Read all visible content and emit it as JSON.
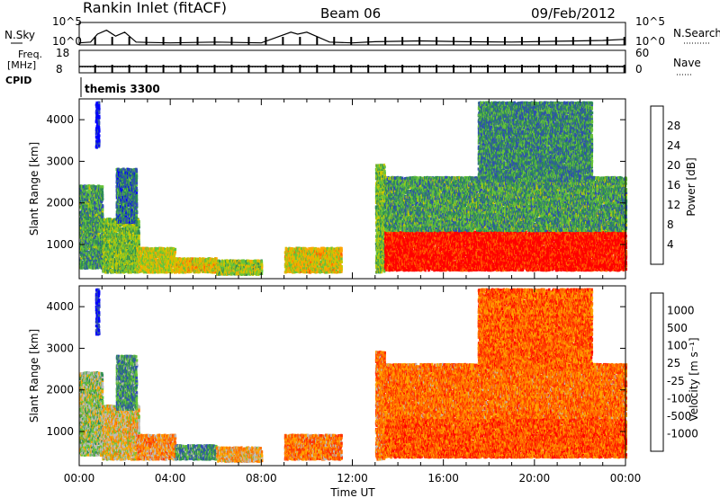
{
  "header": {
    "radar": "Rankin Inlet (fitACF)",
    "beam": "Beam 06",
    "date": "09/Feb/2012"
  },
  "strip_labels": {
    "nsky": "N.Sky",
    "freq_line1": "Freq.",
    "freq_line2": "[MHz]",
    "cpid": "CPID",
    "nsearch": "N.Search",
    "nave": "Nave",
    "cpid_value": "themis 3300"
  },
  "chart_data": [
    {
      "type": "line",
      "title": "N.Sky / N.Search",
      "y_left_ticks": [
        "10^5",
        "10^0"
      ],
      "y_right_ticks": [
        "10^5",
        "10^0"
      ],
      "series": [
        {
          "name": "N.Sky",
          "x_hours": [
            0,
            0.5,
            0.8,
            1.2,
            1.6,
            2.0,
            2.5,
            3.0,
            4.0,
            6.0,
            8.0,
            9.3,
            9.6,
            10.0,
            11.0,
            12.0,
            13.0,
            15.0,
            17.0,
            19.0,
            21.0,
            23.0,
            24.0
          ],
          "values_log10": [
            0.3,
            0.5,
            2.5,
            3.5,
            2.0,
            3.0,
            0.5,
            0.4,
            0.3,
            0.5,
            0.3,
            3.0,
            2.5,
            3.0,
            0.5,
            0.3,
            0.6,
            0.8,
            0.6,
            0.5,
            0.7,
            0.9,
            1.2
          ]
        }
      ]
    },
    {
      "type": "line",
      "title": "Freq. / Nave",
      "y_left_ticks": [
        "18",
        "8"
      ],
      "y_right_ticks": [
        "60",
        "0"
      ],
      "series": [
        {
          "name": "Freq.",
          "x_hours": [
            0,
            24
          ],
          "values": [
            10.8,
            10.8
          ]
        },
        {
          "name": "Nave",
          "x_hours": [
            0,
            24
          ],
          "values": [
            16,
            16
          ]
        }
      ]
    },
    {
      "type": "heatmap",
      "panel": "power",
      "xlabel": "",
      "ylabel": "Slant Range [km]",
      "ylim": [
        180,
        4500
      ],
      "xlim": [
        0,
        24
      ],
      "y_ticks": [
        "1000",
        "2000",
        "3000",
        "4000"
      ],
      "colorbar_label": "Power [dB]",
      "colorbar_ticks": [
        "4",
        "8",
        "12",
        "16",
        "20",
        "24",
        "28"
      ],
      "colorbar_colors": [
        "#0000ff",
        "#2f4fb0",
        "#2e8b57",
        "#66c33a",
        "#c8c800",
        "#ffa500",
        "#ff6000",
        "#ff0000"
      ],
      "blobs": [
        {
          "t0": 0.0,
          "t1": 1.0,
          "r0": 400,
          "r1": 2400,
          "level": 0.35
        },
        {
          "t0": 0.7,
          "t1": 0.85,
          "r0": 3300,
          "r1": 4400,
          "level": 0.05
        },
        {
          "t0": 1.0,
          "t1": 2.6,
          "r0": 300,
          "r1": 1600,
          "level": 0.45
        },
        {
          "t0": 1.6,
          "t1": 2.5,
          "r0": 1500,
          "r1": 2800,
          "level": 0.25
        },
        {
          "t0": 2.5,
          "t1": 4.2,
          "r0": 300,
          "r1": 900,
          "level": 0.55
        },
        {
          "t0": 4.2,
          "t1": 6.0,
          "r0": 300,
          "r1": 650,
          "level": 0.6
        },
        {
          "t0": 6.0,
          "t1": 8.0,
          "r0": 250,
          "r1": 600,
          "level": 0.5
        },
        {
          "t0": 9.0,
          "t1": 11.5,
          "r0": 300,
          "r1": 900,
          "level": 0.6
        },
        {
          "t0": 13.0,
          "t1": 13.4,
          "r0": 300,
          "r1": 2900,
          "level": 0.45
        },
        {
          "t0": 13.4,
          "t1": 24.0,
          "r0": 350,
          "r1": 1300,
          "level": 0.95
        },
        {
          "t0": 13.4,
          "t1": 24.0,
          "r0": 1300,
          "r1": 2600,
          "level": 0.35
        },
        {
          "t0": 17.5,
          "t1": 22.5,
          "r0": 2500,
          "r1": 4400,
          "level": 0.3
        }
      ]
    },
    {
      "type": "heatmap",
      "panel": "velocity",
      "xlabel": "Time UT",
      "ylabel": "Slant Range [km]",
      "ylim": [
        180,
        4500
      ],
      "xlim": [
        0,
        24
      ],
      "x_ticks": [
        "00:00",
        "04:00",
        "08:00",
        "12:00",
        "16:00",
        "20:00",
        "00:00"
      ],
      "y_ticks": [
        "1000",
        "2000",
        "3000",
        "4000"
      ],
      "colorbar_label": "Velocity [m s⁻¹]",
      "colorbar_ticks": [
        "1000",
        "500",
        "100",
        "25",
        "-25",
        "-100",
        "-500",
        "-1000"
      ],
      "colorbar_colors": [
        "#0000ff",
        "#2f4fb0",
        "#2e8b57",
        "#66c33a",
        "#bbbbbb",
        "#ffa500",
        "#ff7000",
        "#ff3000",
        "#ff0000"
      ],
      "blobs": [
        {
          "t0": 0.0,
          "t1": 1.0,
          "r0": 400,
          "r1": 2400,
          "level": 0.45
        },
        {
          "t0": 0.7,
          "t1": 0.85,
          "r0": 3300,
          "r1": 4400,
          "level": 0.05
        },
        {
          "t0": 1.0,
          "t1": 2.6,
          "r0": 300,
          "r1": 1600,
          "level": 0.55
        },
        {
          "t0": 1.6,
          "t1": 2.5,
          "r0": 1500,
          "r1": 2800,
          "level": 0.3
        },
        {
          "t0": 2.5,
          "t1": 4.2,
          "r0": 300,
          "r1": 900,
          "level": 0.65
        },
        {
          "t0": 4.2,
          "t1": 6.0,
          "r0": 300,
          "r1": 650,
          "level": 0.3
        },
        {
          "t0": 6.0,
          "t1": 8.0,
          "r0": 250,
          "r1": 600,
          "level": 0.6
        },
        {
          "t0": 9.0,
          "t1": 11.5,
          "r0": 300,
          "r1": 900,
          "level": 0.7
        },
        {
          "t0": 13.0,
          "t1": 13.4,
          "r0": 300,
          "r1": 2900,
          "level": 0.7
        },
        {
          "t0": 13.4,
          "t1": 24.0,
          "r0": 350,
          "r1": 1300,
          "level": 0.78
        },
        {
          "t0": 13.4,
          "t1": 24.0,
          "r0": 1300,
          "r1": 2600,
          "level": 0.72
        },
        {
          "t0": 17.5,
          "t1": 22.5,
          "r0": 2500,
          "r1": 4400,
          "level": 0.75
        }
      ]
    }
  ]
}
